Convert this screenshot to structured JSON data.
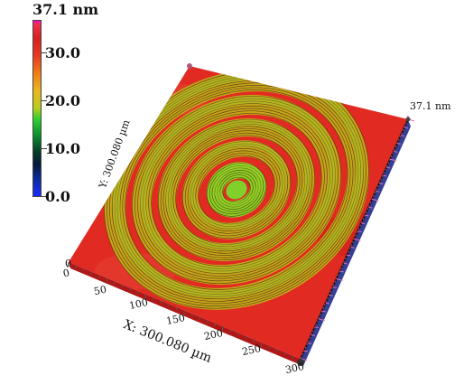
{
  "colorbar": {
    "max_label": "37.1 nm",
    "ticks": [
      "30.0",
      "20.0",
      "10.0",
      "0.0"
    ]
  },
  "surface": {
    "z_max_label": "37.1 nm",
    "x_axis_title": "X: 300.080 µm",
    "y_axis_title": "Y: 300.080 µm",
    "x_ticks": [
      "0",
      "50",
      "100",
      "150",
      "200",
      "250",
      "300"
    ],
    "y_origin_label": "0"
  },
  "colors": {
    "surface": "#e02a22",
    "ring": "#c8a41a",
    "ring_dark": "#3a2a10",
    "ring_center": "#8fd124",
    "axis_pink": "#e070b8"
  }
}
